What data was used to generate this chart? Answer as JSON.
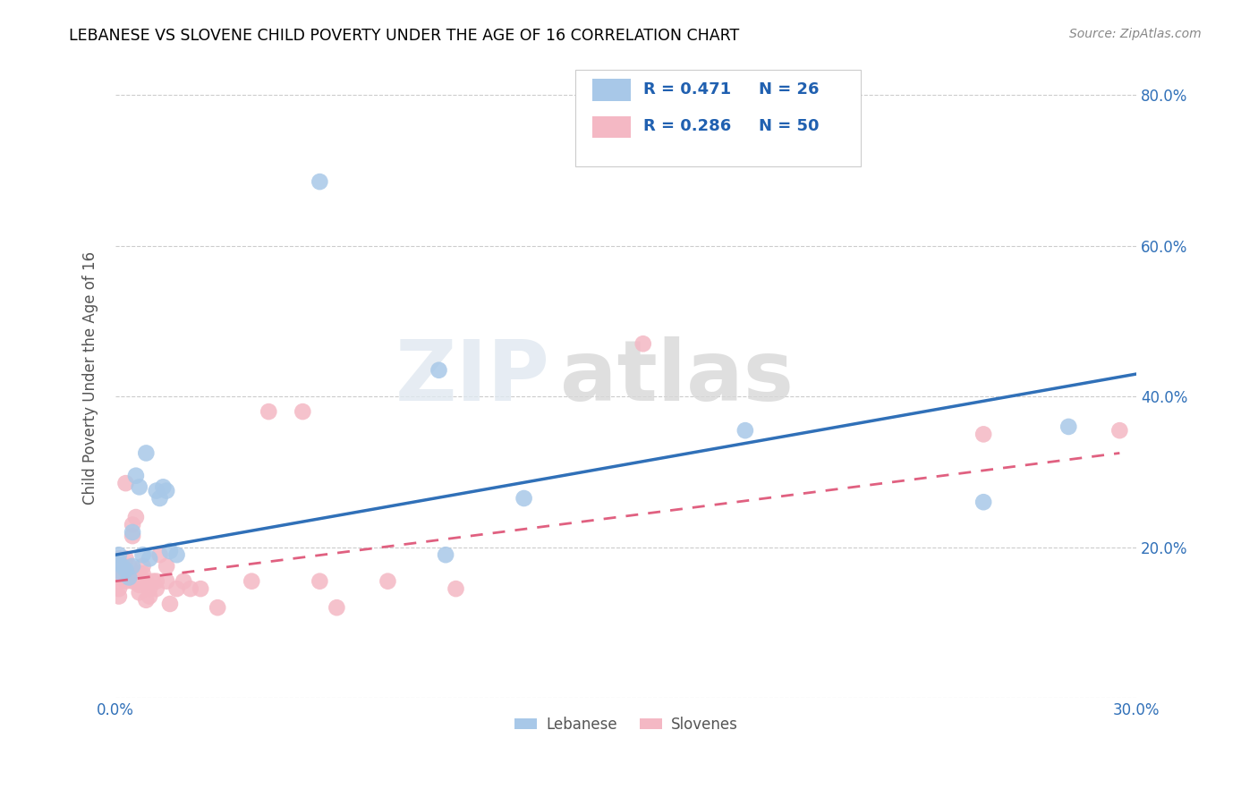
{
  "title": "LEBANESE VS SLOVENE CHILD POVERTY UNDER THE AGE OF 16 CORRELATION CHART",
  "source": "Source: ZipAtlas.com",
  "ylabel": "Child Poverty Under the Age of 16",
  "xlim": [
    0.0,
    0.3
  ],
  "ylim": [
    0.0,
    0.85
  ],
  "yticks": [
    0.0,
    0.2,
    0.4,
    0.6,
    0.8
  ],
  "ytick_labels": [
    "",
    "20.0%",
    "40.0%",
    "60.0%",
    "80.0%"
  ],
  "xticks": [
    0.0,
    0.05,
    0.1,
    0.15,
    0.2,
    0.25,
    0.3
  ],
  "xtick_labels": [
    "0.0%",
    "",
    "",
    "",
    "",
    "",
    "30.0%"
  ],
  "blue_color": "#a8c8e8",
  "pink_color": "#f4b8c4",
  "blue_line_color": "#3070b8",
  "pink_line_color": "#e06080",
  "watermark_zip": "ZIP",
  "watermark_atlas": "atlas",
  "blue_points": [
    [
      0.001,
      0.19
    ],
    [
      0.001,
      0.18
    ],
    [
      0.002,
      0.175
    ],
    [
      0.002,
      0.165
    ],
    [
      0.003,
      0.17
    ],
    [
      0.004,
      0.16
    ],
    [
      0.005,
      0.175
    ],
    [
      0.005,
      0.22
    ],
    [
      0.006,
      0.295
    ],
    [
      0.007,
      0.28
    ],
    [
      0.008,
      0.19
    ],
    [
      0.009,
      0.325
    ],
    [
      0.01,
      0.185
    ],
    [
      0.012,
      0.275
    ],
    [
      0.013,
      0.265
    ],
    [
      0.014,
      0.28
    ],
    [
      0.015,
      0.275
    ],
    [
      0.016,
      0.195
    ],
    [
      0.018,
      0.19
    ],
    [
      0.06,
      0.685
    ],
    [
      0.095,
      0.435
    ],
    [
      0.097,
      0.19
    ],
    [
      0.12,
      0.265
    ],
    [
      0.185,
      0.355
    ],
    [
      0.255,
      0.26
    ],
    [
      0.28,
      0.36
    ]
  ],
  "pink_points": [
    [
      0.001,
      0.185
    ],
    [
      0.001,
      0.175
    ],
    [
      0.001,
      0.165
    ],
    [
      0.001,
      0.155
    ],
    [
      0.001,
      0.145
    ],
    [
      0.001,
      0.135
    ],
    [
      0.002,
      0.175
    ],
    [
      0.002,
      0.16
    ],
    [
      0.003,
      0.155
    ],
    [
      0.003,
      0.185
    ],
    [
      0.003,
      0.285
    ],
    [
      0.004,
      0.175
    ],
    [
      0.004,
      0.165
    ],
    [
      0.005,
      0.155
    ],
    [
      0.005,
      0.215
    ],
    [
      0.005,
      0.23
    ],
    [
      0.006,
      0.155
    ],
    [
      0.006,
      0.24
    ],
    [
      0.007,
      0.155
    ],
    [
      0.007,
      0.165
    ],
    [
      0.007,
      0.15
    ],
    [
      0.007,
      0.14
    ],
    [
      0.008,
      0.165
    ],
    [
      0.008,
      0.175
    ],
    [
      0.009,
      0.155
    ],
    [
      0.009,
      0.13
    ],
    [
      0.01,
      0.145
    ],
    [
      0.01,
      0.135
    ],
    [
      0.011,
      0.155
    ],
    [
      0.012,
      0.155
    ],
    [
      0.012,
      0.145
    ],
    [
      0.013,
      0.19
    ],
    [
      0.015,
      0.155
    ],
    [
      0.015,
      0.175
    ],
    [
      0.016,
      0.125
    ],
    [
      0.018,
      0.145
    ],
    [
      0.02,
      0.155
    ],
    [
      0.022,
      0.145
    ],
    [
      0.025,
      0.145
    ],
    [
      0.03,
      0.12
    ],
    [
      0.04,
      0.155
    ],
    [
      0.045,
      0.38
    ],
    [
      0.055,
      0.38
    ],
    [
      0.06,
      0.155
    ],
    [
      0.065,
      0.12
    ],
    [
      0.08,
      0.155
    ],
    [
      0.1,
      0.145
    ],
    [
      0.155,
      0.47
    ],
    [
      0.255,
      0.35
    ],
    [
      0.295,
      0.355
    ]
  ],
  "blue_trendline": {
    "x": [
      0.0,
      0.3
    ],
    "y": [
      0.19,
      0.43
    ]
  },
  "pink_trendline": {
    "x": [
      0.0,
      0.295
    ],
    "y": [
      0.155,
      0.325
    ]
  }
}
